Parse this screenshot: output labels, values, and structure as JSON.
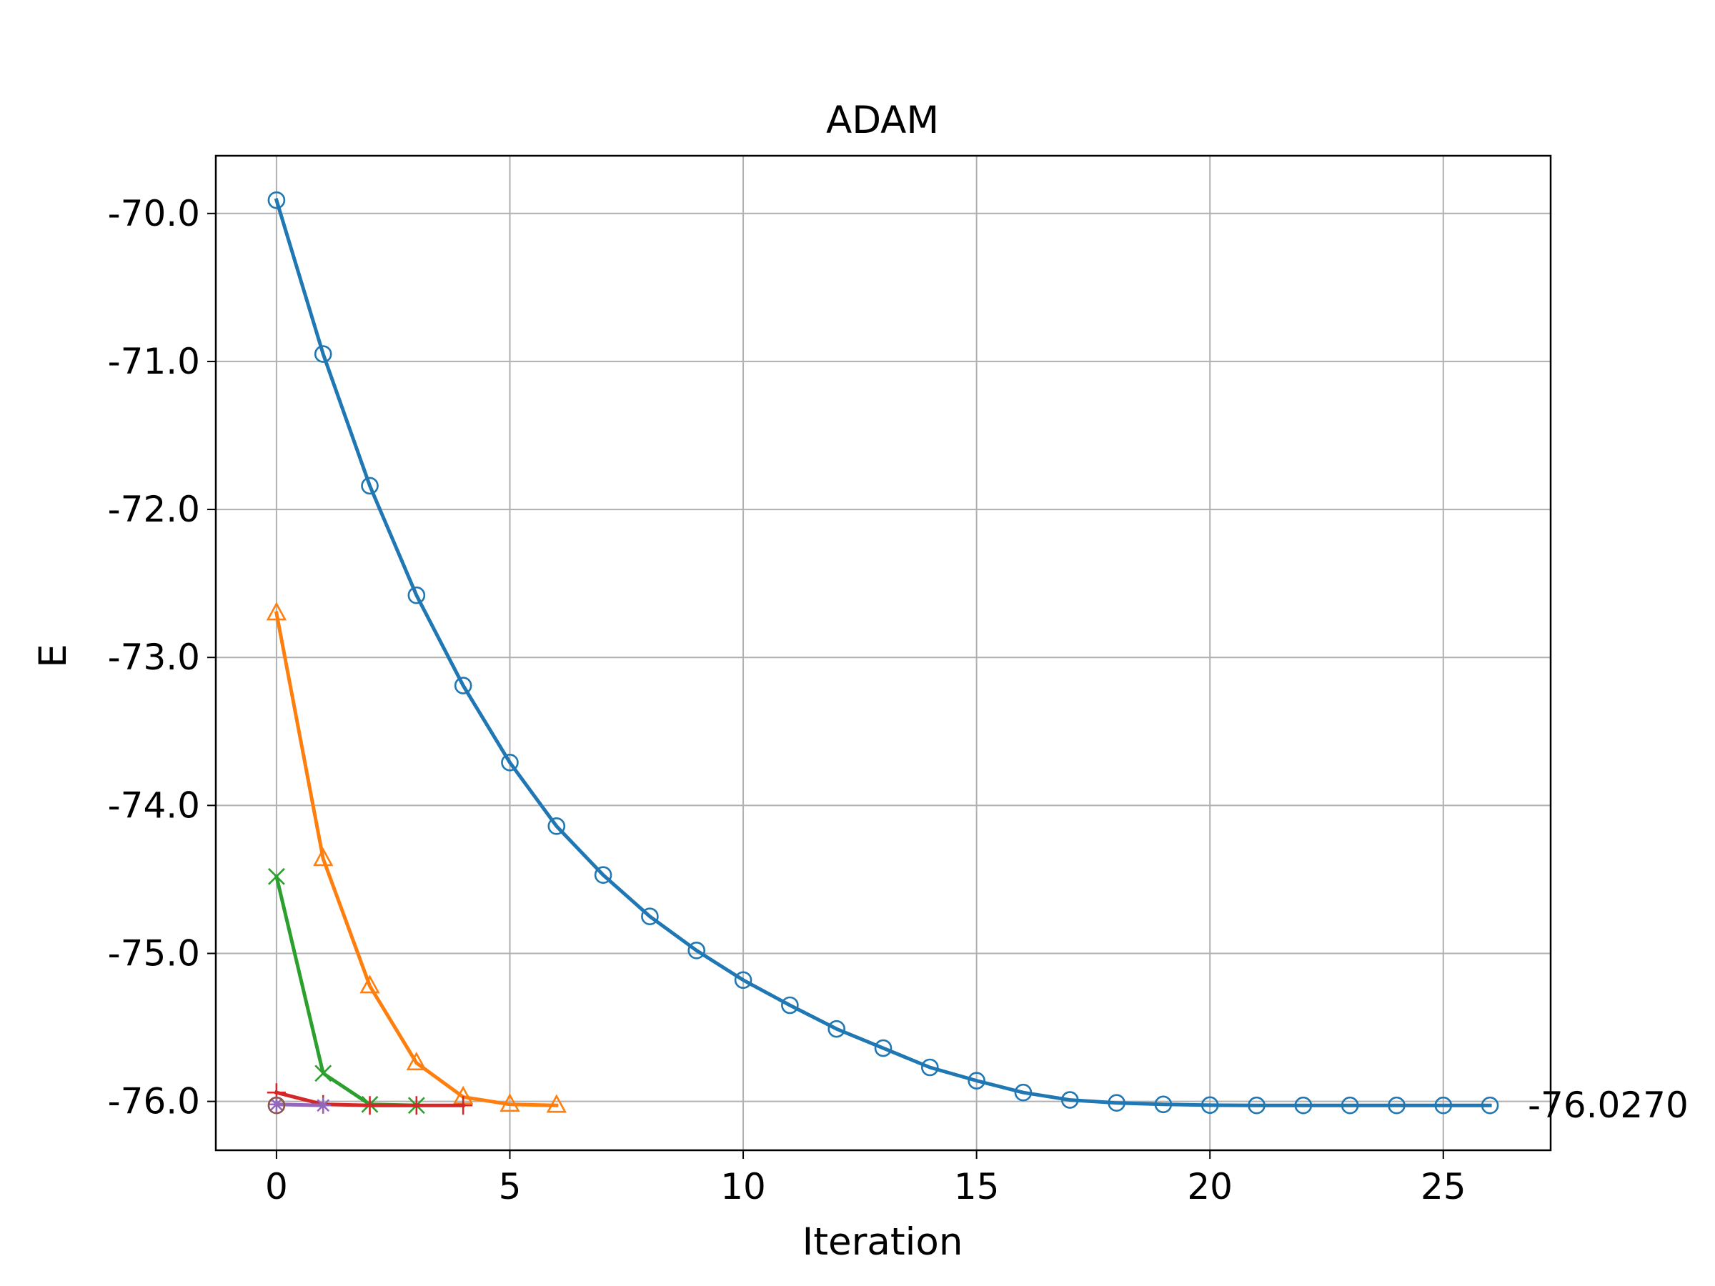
{
  "chart_data": {
    "type": "line",
    "title": "ADAM",
    "xlabel": "Iteration",
    "ylabel": "E",
    "xlim": [
      -1.3,
      27.3
    ],
    "ylim": [
      -76.33,
      -69.61
    ],
    "xticks": [
      0,
      5,
      10,
      15,
      20,
      25
    ],
    "yticks": [
      -70.0,
      -71.0,
      -72.0,
      -73.0,
      -74.0,
      -75.0,
      -76.0
    ],
    "ytick_labels": [
      "-70.0",
      "-71.0",
      "-72.0",
      "-73.0",
      "-74.0",
      "-75.0",
      "-76.0"
    ],
    "grid": true,
    "annotation": {
      "text": "-76.0270",
      "y": -76.027
    },
    "series": [
      {
        "color": "#1f77b4",
        "marker": "circle",
        "x": [
          0,
          1,
          2,
          3,
          4,
          5,
          6,
          7,
          8,
          9,
          10,
          11,
          12,
          13,
          14,
          15,
          16,
          17,
          18,
          19,
          20,
          21,
          22,
          23,
          24,
          25,
          26
        ],
        "y": [
          -69.91,
          -70.95,
          -71.84,
          -72.58,
          -73.19,
          -73.71,
          -74.14,
          -74.47,
          -74.75,
          -74.98,
          -75.18,
          -75.35,
          -75.51,
          -75.64,
          -75.77,
          -75.86,
          -75.94,
          -75.99,
          -76.01,
          -76.02,
          -76.025,
          -76.027,
          -76.027,
          -76.027,
          -76.027,
          -76.027,
          -76.027
        ]
      },
      {
        "color": "#ff7f0e",
        "marker": "triangle",
        "x": [
          0,
          1,
          2,
          3,
          4,
          5,
          6
        ],
        "y": [
          -72.7,
          -74.36,
          -75.22,
          -75.74,
          -75.97,
          -76.02,
          -76.027
        ]
      },
      {
        "color": "#2ca02c",
        "marker": "x",
        "x": [
          0,
          1,
          2,
          3
        ],
        "y": [
          -74.48,
          -75.81,
          -76.02,
          -76.027
        ]
      },
      {
        "color": "#d62728",
        "marker": "plus",
        "x": [
          0,
          1,
          2,
          3,
          4
        ],
        "y": [
          -75.94,
          -76.02,
          -76.027,
          -76.027,
          -76.027
        ]
      },
      {
        "color": "#9467bd",
        "marker": "star",
        "x": [
          0,
          1
        ],
        "y": [
          -76.02,
          -76.027
        ]
      },
      {
        "color": "#8c564b",
        "marker": "circle",
        "x": [
          0
        ],
        "y": [
          -76.027
        ]
      }
    ]
  }
}
